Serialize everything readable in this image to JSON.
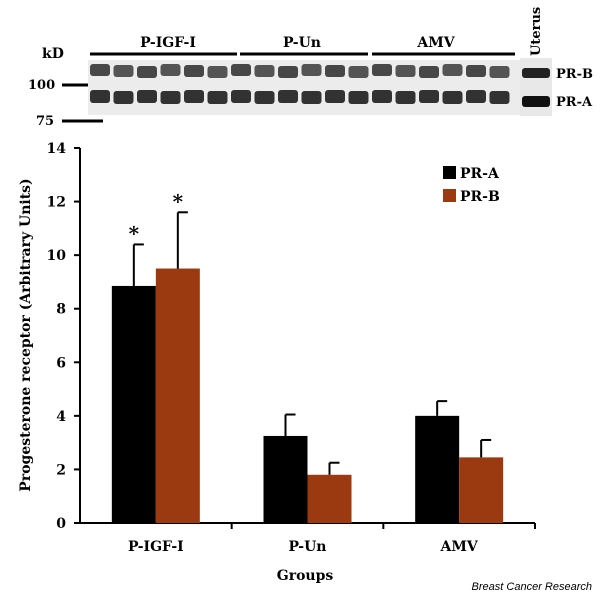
{
  "blot": {
    "marker_unit": "kD",
    "markers": [
      "100",
      "75"
    ],
    "lane_groups": [
      "P-IGF-I",
      "P-Un",
      "AMV"
    ],
    "control_lane": "Uterus",
    "band_labels": [
      "PR-B",
      "PR-A"
    ]
  },
  "chart_data": {
    "type": "bar",
    "title": "",
    "xlabel": "Groups",
    "ylabel": "Progesterone receptor (Arbitrary Units)",
    "categories": [
      "P-IGF-I",
      "P-Un",
      "AMV"
    ],
    "ylim": [
      0,
      14
    ],
    "yticks": [
      "0",
      "2",
      "4",
      "6",
      "8",
      "10",
      "12",
      "14"
    ],
    "series": [
      {
        "name": "PR-A",
        "color": "#000000",
        "values": [
          8.85,
          3.25,
          4.0
        ],
        "errors": [
          1.55,
          0.8,
          0.55
        ]
      },
      {
        "name": "PR-B",
        "color": "#9b3a10",
        "values": [
          9.5,
          1.8,
          2.45
        ],
        "errors": [
          2.1,
          0.45,
          0.65
        ]
      }
    ],
    "significance_marker": "*",
    "significant_categories": [
      "P-IGF-I"
    ],
    "legend_position": "top-right",
    "grid": false
  },
  "credit": "Breast Cancer Research"
}
